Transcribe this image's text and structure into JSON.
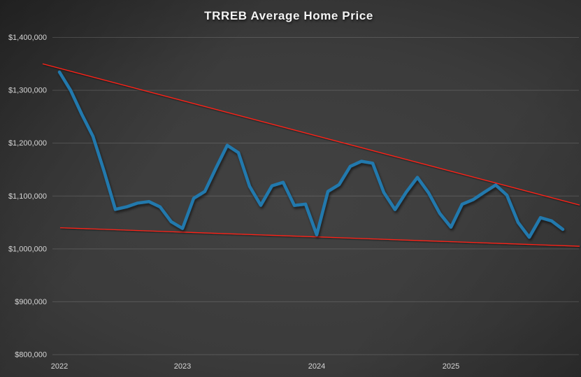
{
  "header": {
    "title": "TRREB Average Home Price"
  },
  "colors": {
    "background_center": "#424242",
    "background_edge": "#1c1c1c",
    "title_text": "#f4f4f4",
    "axis_text": "#d6d6d6",
    "gridline": "rgba(255,255,255,0.15)",
    "price_line": "#2279ad",
    "trend_line": "#ff2018"
  },
  "chart_data": {
    "type": "line",
    "title": "TRREB Average Home Price",
    "legend": "none",
    "grid": "horizontal-only",
    "x": [
      "2022-02",
      "2022-03",
      "2022-04",
      "2022-05",
      "2022-06",
      "2022-07",
      "2022-08",
      "2022-09",
      "2022-10",
      "2022-11",
      "2022-12",
      "2023-01",
      "2023-02",
      "2023-03",
      "2023-04",
      "2023-05",
      "2023-06",
      "2023-07",
      "2023-08",
      "2023-09",
      "2023-10",
      "2023-11",
      "2023-12",
      "2024-01",
      "2024-02",
      "2024-03",
      "2024-04",
      "2024-05",
      "2024-06",
      "2024-07",
      "2024-08",
      "2024-09",
      "2024-10",
      "2024-11",
      "2024-12",
      "2025-01",
      "2025-02",
      "2025-03",
      "2025-04",
      "2025-05",
      "2025-06",
      "2025-07",
      "2025-08",
      "2025-09",
      "2025-10",
      "2025-11"
    ],
    "series": [
      {
        "name": "Average home price",
        "kind": "data-line",
        "values": [
          1334544,
          1299894,
          1254436,
          1212806,
          1146254,
          1074754,
          1079500,
          1086762,
          1089428,
          1079395,
          1051216,
          1038668,
          1095617,
          1108606,
          1153269,
          1195929,
          1182120,
          1118374,
          1082496,
          1119428,
          1125928,
          1082179,
          1084692,
          1026703,
          1108720,
          1121615,
          1156167,
          1165691,
          1162167,
          1106617,
          1074425,
          1107291,
          1135215,
          1106050,
          1067186,
          1040994,
          1084547,
          1093254,
          1107463,
          1120879,
          1101691,
          1050000,
          1022000,
          1059000,
          1053000,
          1037000
        ]
      },
      {
        "name": "Upper trend channel line",
        "kind": "straight-trendline",
        "start_value": 1350000,
        "end_value": 1083000
      },
      {
        "name": "Lower trend channel line",
        "kind": "straight-trendline",
        "start_value": 1040000,
        "end_value": 1005000
      }
    ],
    "y_axis": {
      "min": 800000,
      "max": 1400000,
      "tick_interval": 100000,
      "tick_labels": [
        "$1,400,000",
        "$1,300,000",
        "$1,200,000",
        "$1,100,000",
        "$1,000,000",
        "$900,000",
        "$800,000"
      ]
    },
    "x_axis": {
      "ticks": [
        {
          "label": "2022",
          "point_index": 0
        },
        {
          "label": "2023",
          "point_index": 11
        },
        {
          "label": "2024",
          "point_index": 23
        },
        {
          "label": "2025",
          "point_index": 35
        }
      ]
    }
  }
}
